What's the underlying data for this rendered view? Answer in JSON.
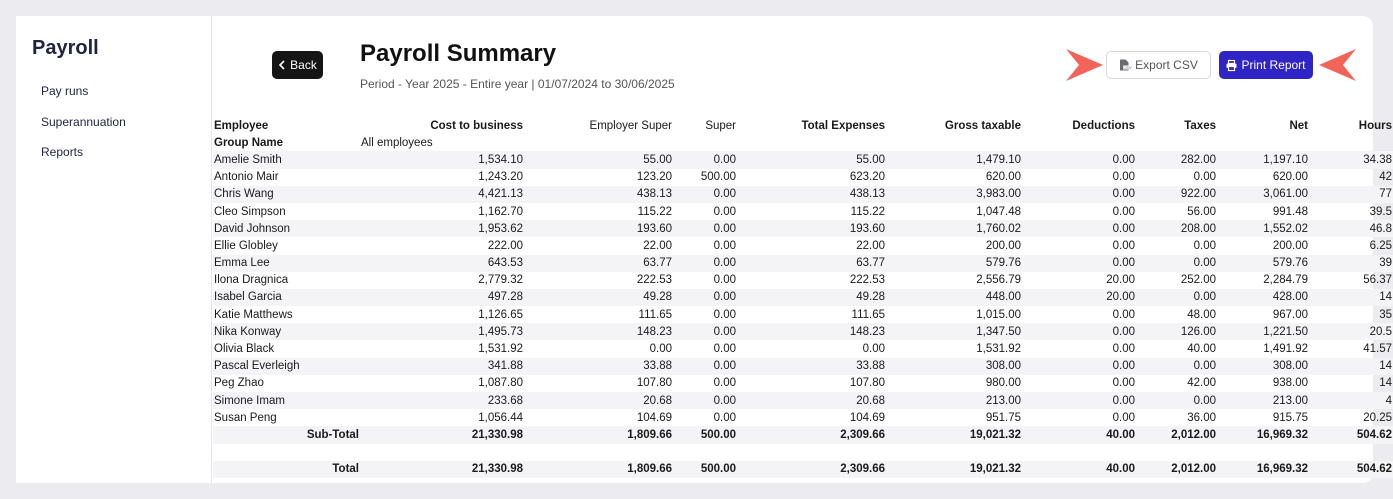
{
  "sidebar": {
    "title": "Payroll",
    "items": [
      {
        "label": "Pay runs"
      },
      {
        "label": "Superannuation"
      },
      {
        "label": "Reports"
      }
    ]
  },
  "header": {
    "back_label": "Back",
    "title": "Payroll Summary",
    "period": "Period - Year 2025 - Entire year | 01/07/2024 to 30/06/2025",
    "export_label": "Export CSV",
    "print_label": "Print Report"
  },
  "colors": {
    "accent": "#2f24c4",
    "arrow": "#f2645a",
    "back_button": "#151515"
  },
  "table": {
    "columns": [
      "Employee",
      "Cost to business",
      "Employer Super",
      "Super",
      "Total Expenses",
      "Gross taxable",
      "Deductions",
      "Taxes",
      "Net",
      "Hours"
    ],
    "group_label": "Group Name",
    "group_value": "All employees",
    "rows": [
      [
        "Amelie Smith",
        "1,534.10",
        "55.00",
        "0.00",
        "55.00",
        "1,479.10",
        "0.00",
        "282.00",
        "1,197.10",
        "34.38"
      ],
      [
        "Antonio Mair",
        "1,243.20",
        "123.20",
        "500.00",
        "623.20",
        "620.00",
        "0.00",
        "0.00",
        "620.00",
        "42"
      ],
      [
        "Chris Wang",
        "4,421.13",
        "438.13",
        "0.00",
        "438.13",
        "3,983.00",
        "0.00",
        "922.00",
        "3,061.00",
        "77"
      ],
      [
        "Cleo Simpson",
        "1,162.70",
        "115.22",
        "0.00",
        "115.22",
        "1,047.48",
        "0.00",
        "56.00",
        "991.48",
        "39.5"
      ],
      [
        "David Johnson",
        "1,953.62",
        "193.60",
        "0.00",
        "193.60",
        "1,760.02",
        "0.00",
        "208.00",
        "1,552.02",
        "46.8"
      ],
      [
        "Ellie Globley",
        "222.00",
        "22.00",
        "0.00",
        "22.00",
        "200.00",
        "0.00",
        "0.00",
        "200.00",
        "6.25"
      ],
      [
        "Emma Lee",
        "643.53",
        "63.77",
        "0.00",
        "63.77",
        "579.76",
        "0.00",
        "0.00",
        "579.76",
        "39"
      ],
      [
        "Ilona Dragnica",
        "2,779.32",
        "222.53",
        "0.00",
        "222.53",
        "2,556.79",
        "20.00",
        "252.00",
        "2,284.79",
        "56.37"
      ],
      [
        "Isabel Garcia",
        "497.28",
        "49.28",
        "0.00",
        "49.28",
        "448.00",
        "20.00",
        "0.00",
        "428.00",
        "14"
      ],
      [
        "Katie Matthews",
        "1,126.65",
        "111.65",
        "0.00",
        "111.65",
        "1,015.00",
        "0.00",
        "48.00",
        "967.00",
        "35"
      ],
      [
        "Nika Konway",
        "1,495.73",
        "148.23",
        "0.00",
        "148.23",
        "1,347.50",
        "0.00",
        "126.00",
        "1,221.50",
        "20.5"
      ],
      [
        "Olivia Black",
        "1,531.92",
        "0.00",
        "0.00",
        "0.00",
        "1,531.92",
        "0.00",
        "40.00",
        "1,491.92",
        "41.57"
      ],
      [
        "Pascal Everleigh",
        "341.88",
        "33.88",
        "0.00",
        "33.88",
        "308.00",
        "0.00",
        "0.00",
        "308.00",
        "14"
      ],
      [
        "Peg Zhao",
        "1,087.80",
        "107.80",
        "0.00",
        "107.80",
        "980.00",
        "0.00",
        "42.00",
        "938.00",
        "14"
      ],
      [
        "Simone Imam",
        "233.68",
        "20.68",
        "0.00",
        "20.68",
        "213.00",
        "0.00",
        "0.00",
        "213.00",
        "4"
      ],
      [
        "Susan Peng",
        "1,056.44",
        "104.69",
        "0.00",
        "104.69",
        "951.75",
        "0.00",
        "36.00",
        "915.75",
        "20.25"
      ]
    ],
    "subtotal": [
      "Sub-Total",
      "21,330.98",
      "1,809.66",
      "500.00",
      "2,309.66",
      "19,021.32",
      "40.00",
      "2,012.00",
      "16,969.32",
      "504.62"
    ],
    "total": [
      "Total",
      "21,330.98",
      "1,809.66",
      "500.00",
      "2,309.66",
      "19,021.32",
      "40.00",
      "2,012.00",
      "16,969.32",
      "504.62"
    ]
  }
}
